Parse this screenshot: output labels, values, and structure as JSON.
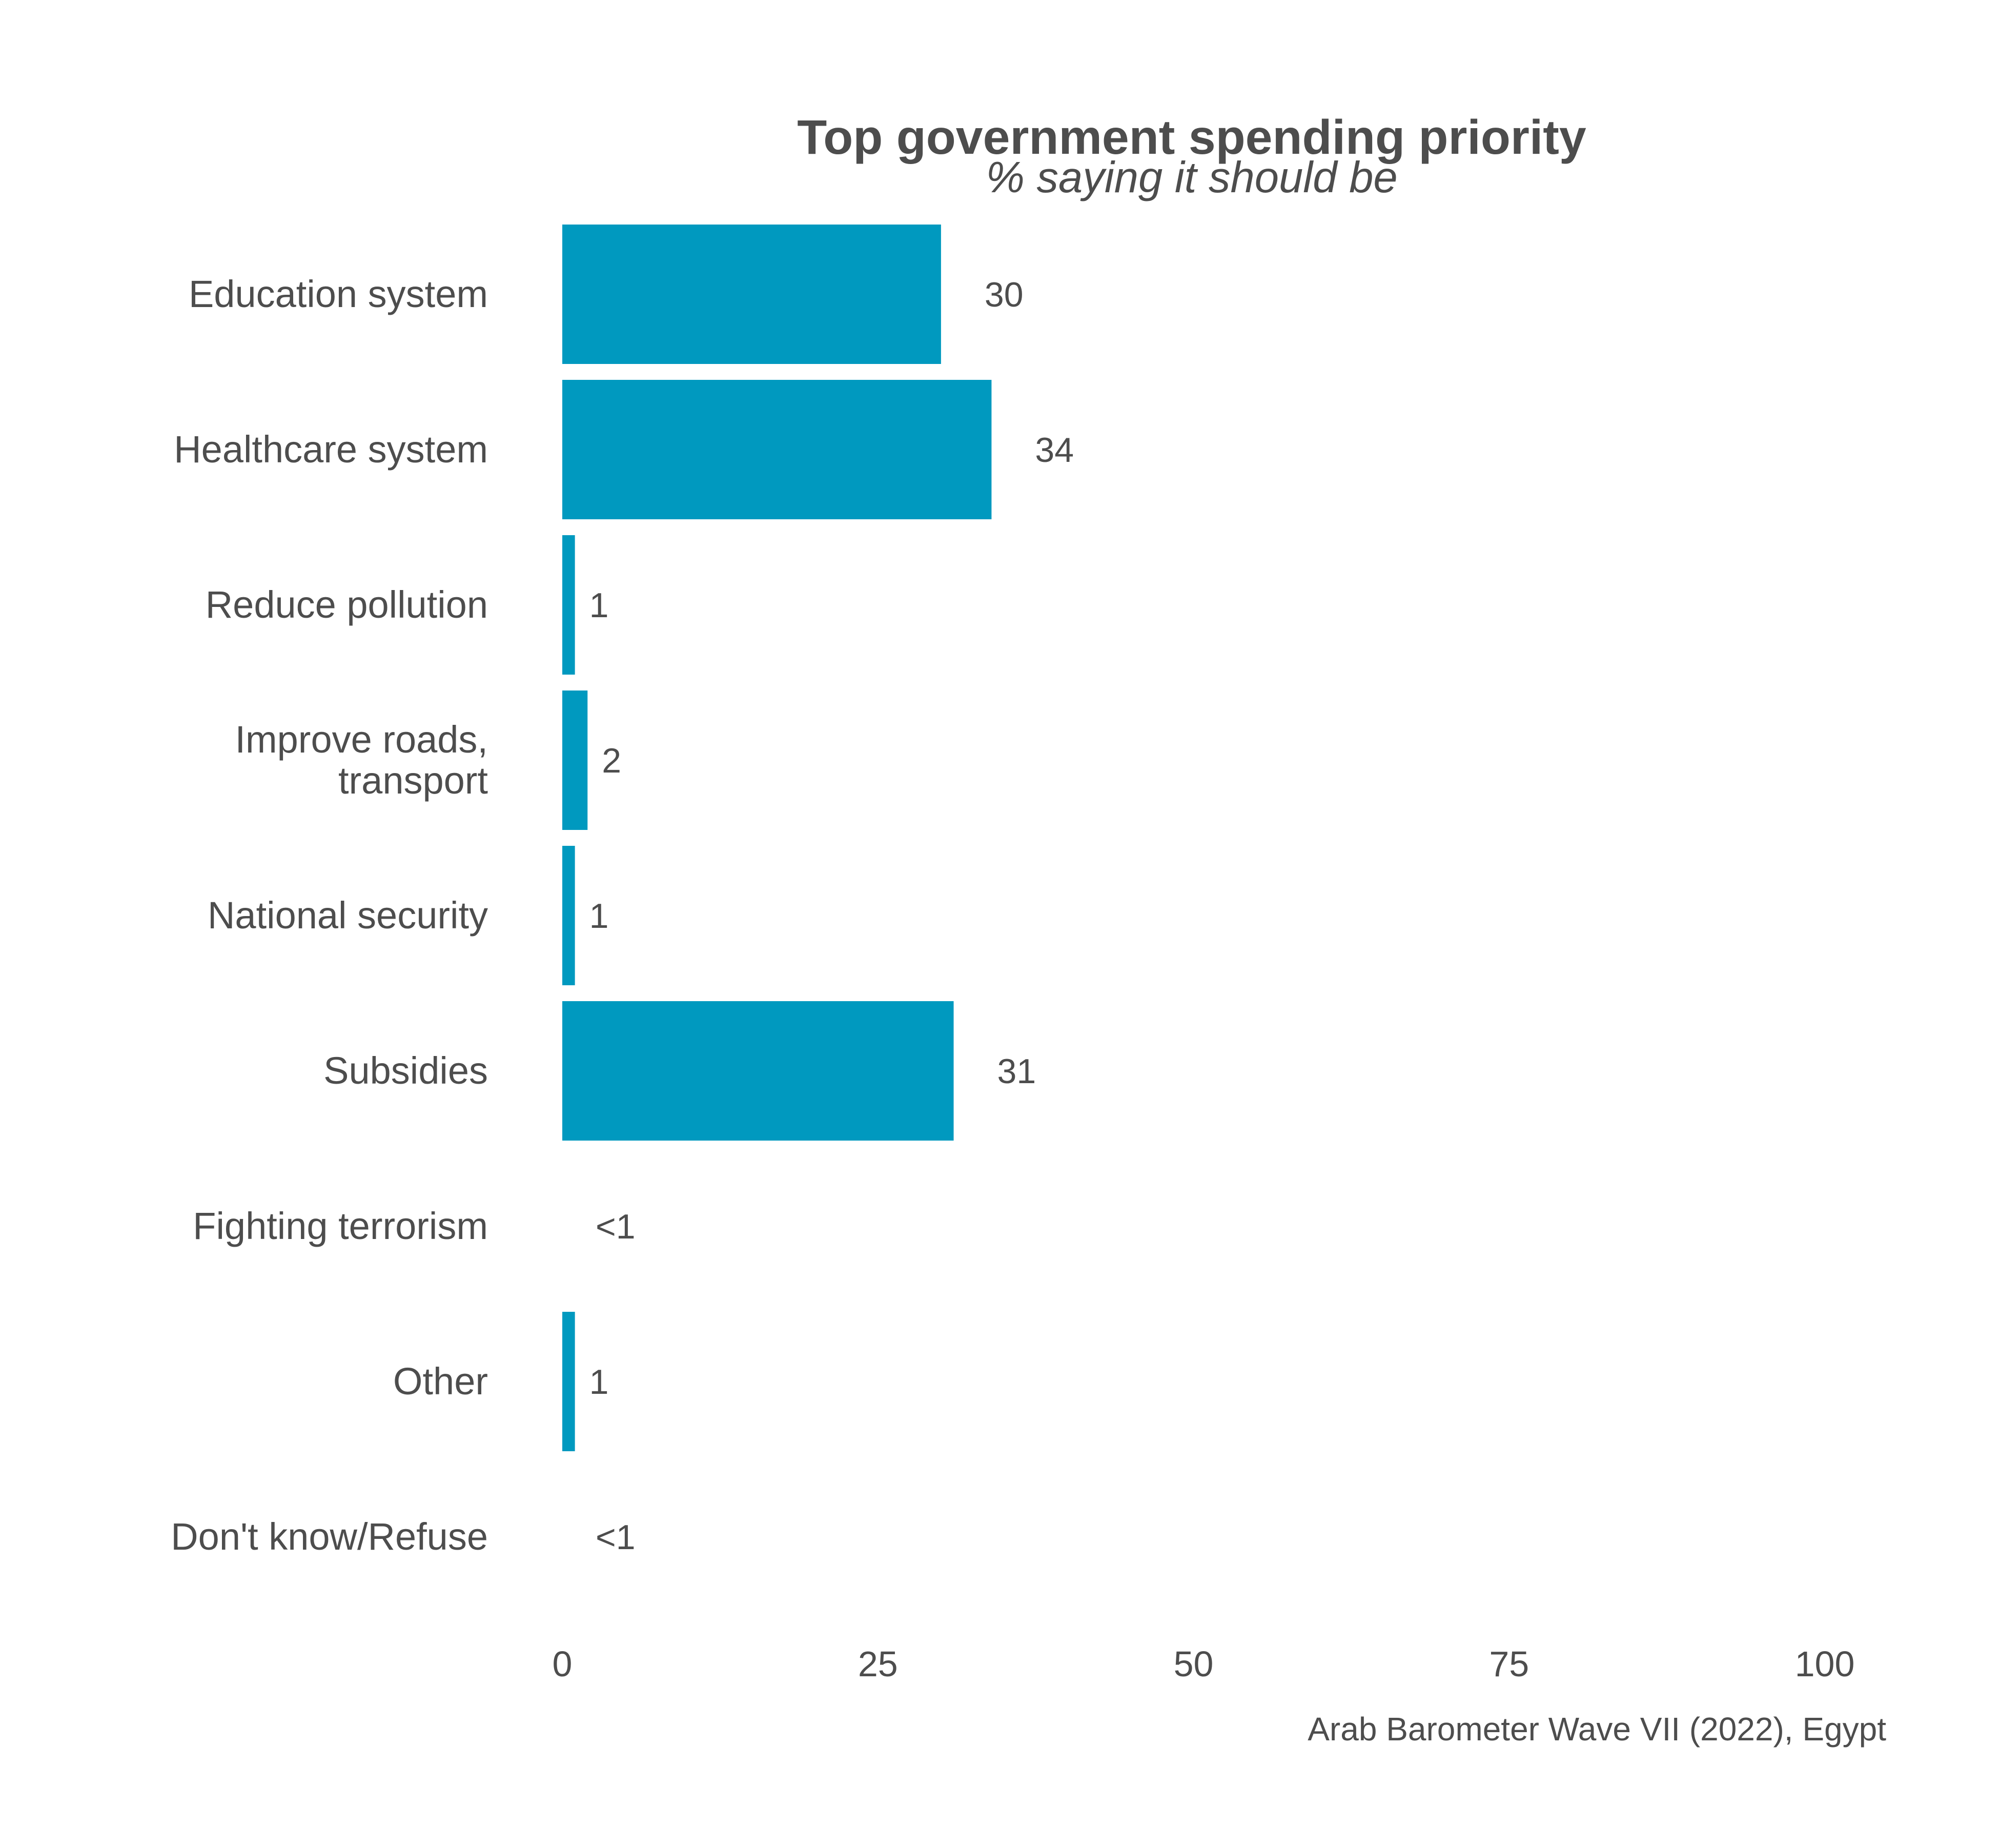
{
  "chart_data": {
    "type": "bar",
    "orientation": "horizontal",
    "title": "Top government spending priority",
    "subtitle": "% saying it should be",
    "categories": [
      [
        "Education system"
      ],
      [
        "Healthcare system"
      ],
      [
        "Reduce pollution"
      ],
      [
        "Improve roads,",
        "transport"
      ],
      [
        "National security"
      ],
      [
        "Subsidies"
      ],
      [
        "Fighting terrorism"
      ],
      [
        "Other"
      ],
      [
        "Don't know/Refuse"
      ]
    ],
    "values": [
      30,
      34,
      1,
      2,
      1,
      31,
      0.3,
      1,
      0.3
    ],
    "value_labels": [
      "30",
      "34",
      "1",
      "2",
      "1",
      "31",
      "<1",
      "1",
      "<1"
    ],
    "xlim": [
      0,
      100
    ],
    "xticks": [
      0,
      25,
      50,
      75,
      100
    ],
    "xlabel": "",
    "ylabel": "",
    "grid": false,
    "legend": "none",
    "bar_color": "#0099bf",
    "text_color": "#4d4d4d",
    "caption": "Arab Barometer Wave VII (2022), Egypt"
  }
}
